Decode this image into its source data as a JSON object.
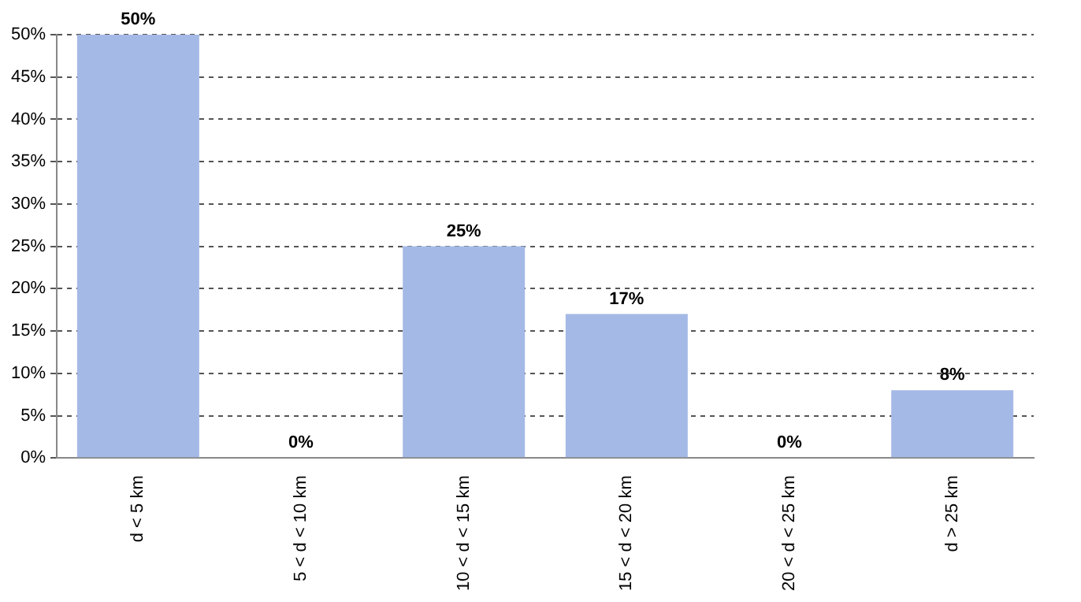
{
  "chart_data": {
    "type": "bar",
    "categories": [
      "d < 5 km",
      "5 < d < 10 km",
      "10 < d < 15 km",
      "15 < d < 20 km",
      "20 < d < 25 km",
      "d > 25 km"
    ],
    "values": [
      50,
      0,
      25,
      17,
      0,
      8
    ],
    "value_labels": [
      "50%",
      "0%",
      "25%",
      "17%",
      "0%",
      "8%"
    ],
    "color": "#a4b9e6",
    "ylim": [
      0,
      50
    ],
    "yticks": [
      {
        "value": 0,
        "label": "0%"
      },
      {
        "value": 5,
        "label": "5%"
      },
      {
        "value": 10,
        "label": "10%"
      },
      {
        "value": 15,
        "label": "15%"
      },
      {
        "value": 20,
        "label": "20%"
      },
      {
        "value": 25,
        "label": "25%"
      },
      {
        "value": 30,
        "label": "30%"
      },
      {
        "value": 35,
        "label": "35%"
      },
      {
        "value": 40,
        "label": "40%"
      },
      {
        "value": 45,
        "label": "45%"
      },
      {
        "value": 50,
        "label": "50%"
      }
    ],
    "grid": "y",
    "legend": false
  }
}
